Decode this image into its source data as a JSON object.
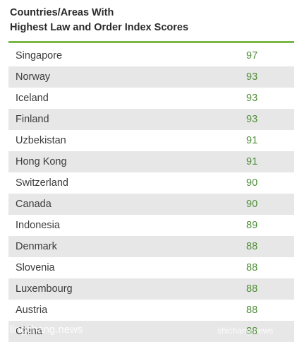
{
  "title_lines": [
    "Countries/Areas With",
    "Highest Law and Order Index Scores"
  ],
  "colors": {
    "accent_rule": "#7ab648",
    "value_text": "#4f8f3a",
    "row_shade": "#e7e7e7"
  },
  "chart_data": {
    "type": "table",
    "title": "Countries/Areas With Highest Law and Order Index Scores",
    "columns": [
      "",
      ""
    ],
    "rows": [
      {
        "name": "Singapore",
        "score": 97
      },
      {
        "name": "Norway",
        "score": 93
      },
      {
        "name": "Iceland",
        "score": 93
      },
      {
        "name": "Finland",
        "score": 93
      },
      {
        "name": "Uzbekistan",
        "score": 91
      },
      {
        "name": "Hong Kong",
        "score": 91
      },
      {
        "name": "Switzerland",
        "score": 90
      },
      {
        "name": "Canada",
        "score": 90
      },
      {
        "name": "Indonesia",
        "score": 89
      },
      {
        "name": "Denmark",
        "score": 88
      },
      {
        "name": "Slovenia",
        "score": 88
      },
      {
        "name": "Luxembourg",
        "score": 88
      },
      {
        "name": "Austria",
        "score": 88
      },
      {
        "name": "China",
        "score": 88
      }
    ]
  },
  "watermark": {
    "left_text": "lingchang.news",
    "right_text": "shichang.news"
  }
}
